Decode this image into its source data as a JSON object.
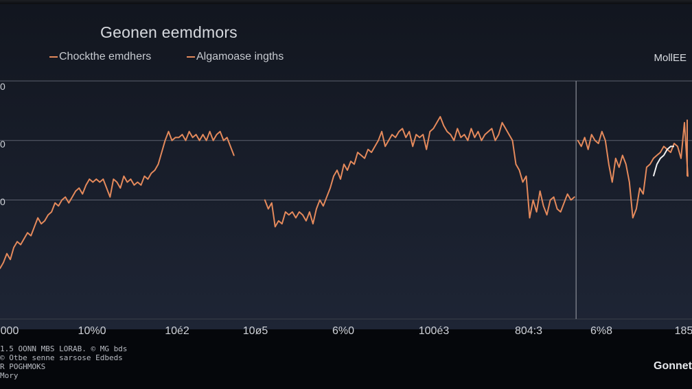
{
  "title": "Geonen eemdmors",
  "legend": [
    {
      "label": "Chockthe emdhers",
      "color": "#e58a5c"
    },
    {
      "label": "Algamoase ingths",
      "color": "#e58a5c"
    }
  ],
  "corner_label": "MollEE",
  "brand": "Gonnet",
  "footnotes": [
    "1.5 OONN MBS   LORAB.   ©  MG  bds",
    "© Otbe  senne sarsose Edbeds",
    "R POGHMOKS",
    "Mory"
  ],
  "colors": {
    "series": "#e58a5c",
    "highlight": "#f2f2f2",
    "grid": "#6e7280",
    "background": "#161b26"
  },
  "chart_data": {
    "type": "line",
    "title": "Geonen eemdmors",
    "ylim": [
      0,
      4
    ],
    "y_ticks": [
      "0",
      "0",
      "0"
    ],
    "x_tick_labels": [
      "000",
      "10%0",
      "10é2",
      "10ø5",
      "6%0",
      "100é3",
      "804:3",
      "6%8",
      "185"
    ],
    "grid": true,
    "legend_placement": "top-left",
    "series": [
      {
        "segment": 1,
        "x": [
          0,
          1,
          2,
          3,
          4,
          5,
          6,
          7,
          8,
          9,
          10,
          11,
          12,
          13,
          14,
          15,
          16,
          17,
          18,
          19,
          20,
          21,
          22,
          23,
          24,
          25,
          26,
          27,
          28,
          29,
          30,
          31,
          32,
          33,
          34,
          35,
          36,
          37,
          38,
          39,
          40,
          41,
          42,
          43,
          44,
          45,
          46,
          47,
          48,
          49,
          50,
          51,
          52,
          53,
          54,
          55,
          56,
          57,
          58,
          59,
          60,
          61,
          62,
          63,
          64,
          65,
          66,
          67,
          68
        ],
        "y": [
          0.85,
          0.95,
          1.1,
          1.0,
          1.2,
          1.3,
          1.25,
          1.35,
          1.45,
          1.4,
          1.55,
          1.7,
          1.6,
          1.65,
          1.75,
          1.8,
          1.95,
          1.9,
          2.0,
          2.05,
          1.95,
          2.05,
          2.15,
          2.2,
          2.1,
          2.25,
          2.35,
          2.3,
          2.35,
          2.3,
          2.35,
          2.2,
          2.05,
          2.35,
          2.3,
          2.2,
          2.4,
          2.3,
          2.35,
          2.25,
          2.3,
          2.25,
          2.4,
          2.35,
          2.45,
          2.5,
          2.6,
          2.8,
          3.0,
          3.15,
          3.0,
          3.05,
          3.05,
          3.1,
          3.0,
          3.15,
          3.05,
          3.1,
          3.0,
          3.1,
          3.0,
          3.15,
          3.0,
          3.1,
          3.15,
          3.0,
          3.05,
          2.9,
          2.75
        ]
      },
      {
        "segment": 2,
        "x": [
          77,
          78,
          79,
          80,
          81,
          82,
          83,
          84,
          85,
          86,
          87,
          88,
          89,
          90,
          91,
          92,
          93,
          94,
          95,
          96,
          97,
          98,
          99,
          100,
          101,
          102,
          103,
          104,
          105,
          106,
          107,
          108,
          109,
          110,
          111,
          112,
          113,
          114,
          115,
          116,
          117,
          118,
          119,
          120,
          121,
          122,
          123,
          124,
          125,
          126,
          127,
          128,
          129,
          130,
          131,
          132,
          133,
          134,
          135,
          136,
          137,
          138,
          139,
          140,
          141,
          142,
          143,
          144,
          145,
          146,
          147,
          148,
          149,
          150,
          151,
          152,
          153,
          154,
          155,
          156,
          157,
          158,
          159,
          160,
          161,
          162,
          163,
          164,
          165,
          166,
          167
        ],
        "y": [
          2.0,
          1.85,
          1.95,
          1.55,
          1.65,
          1.6,
          1.8,
          1.75,
          1.8,
          1.7,
          1.8,
          1.75,
          1.65,
          1.8,
          1.6,
          1.85,
          2.0,
          1.9,
          2.05,
          2.2,
          2.4,
          2.5,
          2.35,
          2.6,
          2.5,
          2.65,
          2.6,
          2.8,
          2.75,
          2.7,
          2.85,
          2.8,
          2.9,
          3.0,
          3.15,
          2.9,
          3.0,
          3.1,
          3.05,
          3.15,
          3.2,
          3.05,
          3.15,
          2.9,
          3.1,
          3.05,
          3.1,
          2.85,
          3.15,
          3.2,
          3.3,
          3.4,
          3.25,
          3.15,
          3.1,
          3.0,
          3.2,
          3.05,
          3.1,
          3.0,
          3.2,
          3.05,
          3.15,
          3.0,
          3.1,
          3.15,
          3.2,
          3.0,
          3.1,
          3.3,
          3.2,
          3.1,
          3.0,
          2.6,
          2.5,
          2.3,
          2.4,
          1.7,
          2.0,
          1.8,
          2.15,
          1.9,
          1.75,
          2.0,
          2.05,
          1.85,
          1.8,
          1.95,
          2.1,
          2.0,
          2.05
        ]
      },
      {
        "segment": 3,
        "x": [
          168,
          169,
          170,
          171,
          172,
          173,
          174,
          175,
          176,
          177,
          178,
          179,
          180,
          181,
          182,
          183,
          184,
          185,
          186,
          187,
          188,
          189,
          190,
          191,
          192,
          193,
          194,
          195,
          196,
          197,
          198,
          199,
          200
        ],
        "y": [
          3.0,
          2.9,
          3.05,
          2.85,
          3.1,
          3.0,
          2.95,
          3.15,
          3.0,
          2.6,
          2.3,
          2.7,
          2.55,
          2.75,
          2.6,
          2.3,
          1.7,
          1.85,
          2.2,
          2.1,
          2.55,
          2.6,
          2.7,
          2.75,
          2.8,
          2.9,
          2.85,
          2.8,
          2.95,
          2.9,
          2.7,
          3.3,
          2.4
        ]
      }
    ],
    "highlight_series": {
      "x": [
        190,
        191,
        192,
        193,
        194,
        195,
        196
      ],
      "y": [
        2.4,
        2.6,
        2.7,
        2.75,
        2.85,
        2.9,
        2.9
      ]
    },
    "vertical_marker_x": 167.5
  }
}
